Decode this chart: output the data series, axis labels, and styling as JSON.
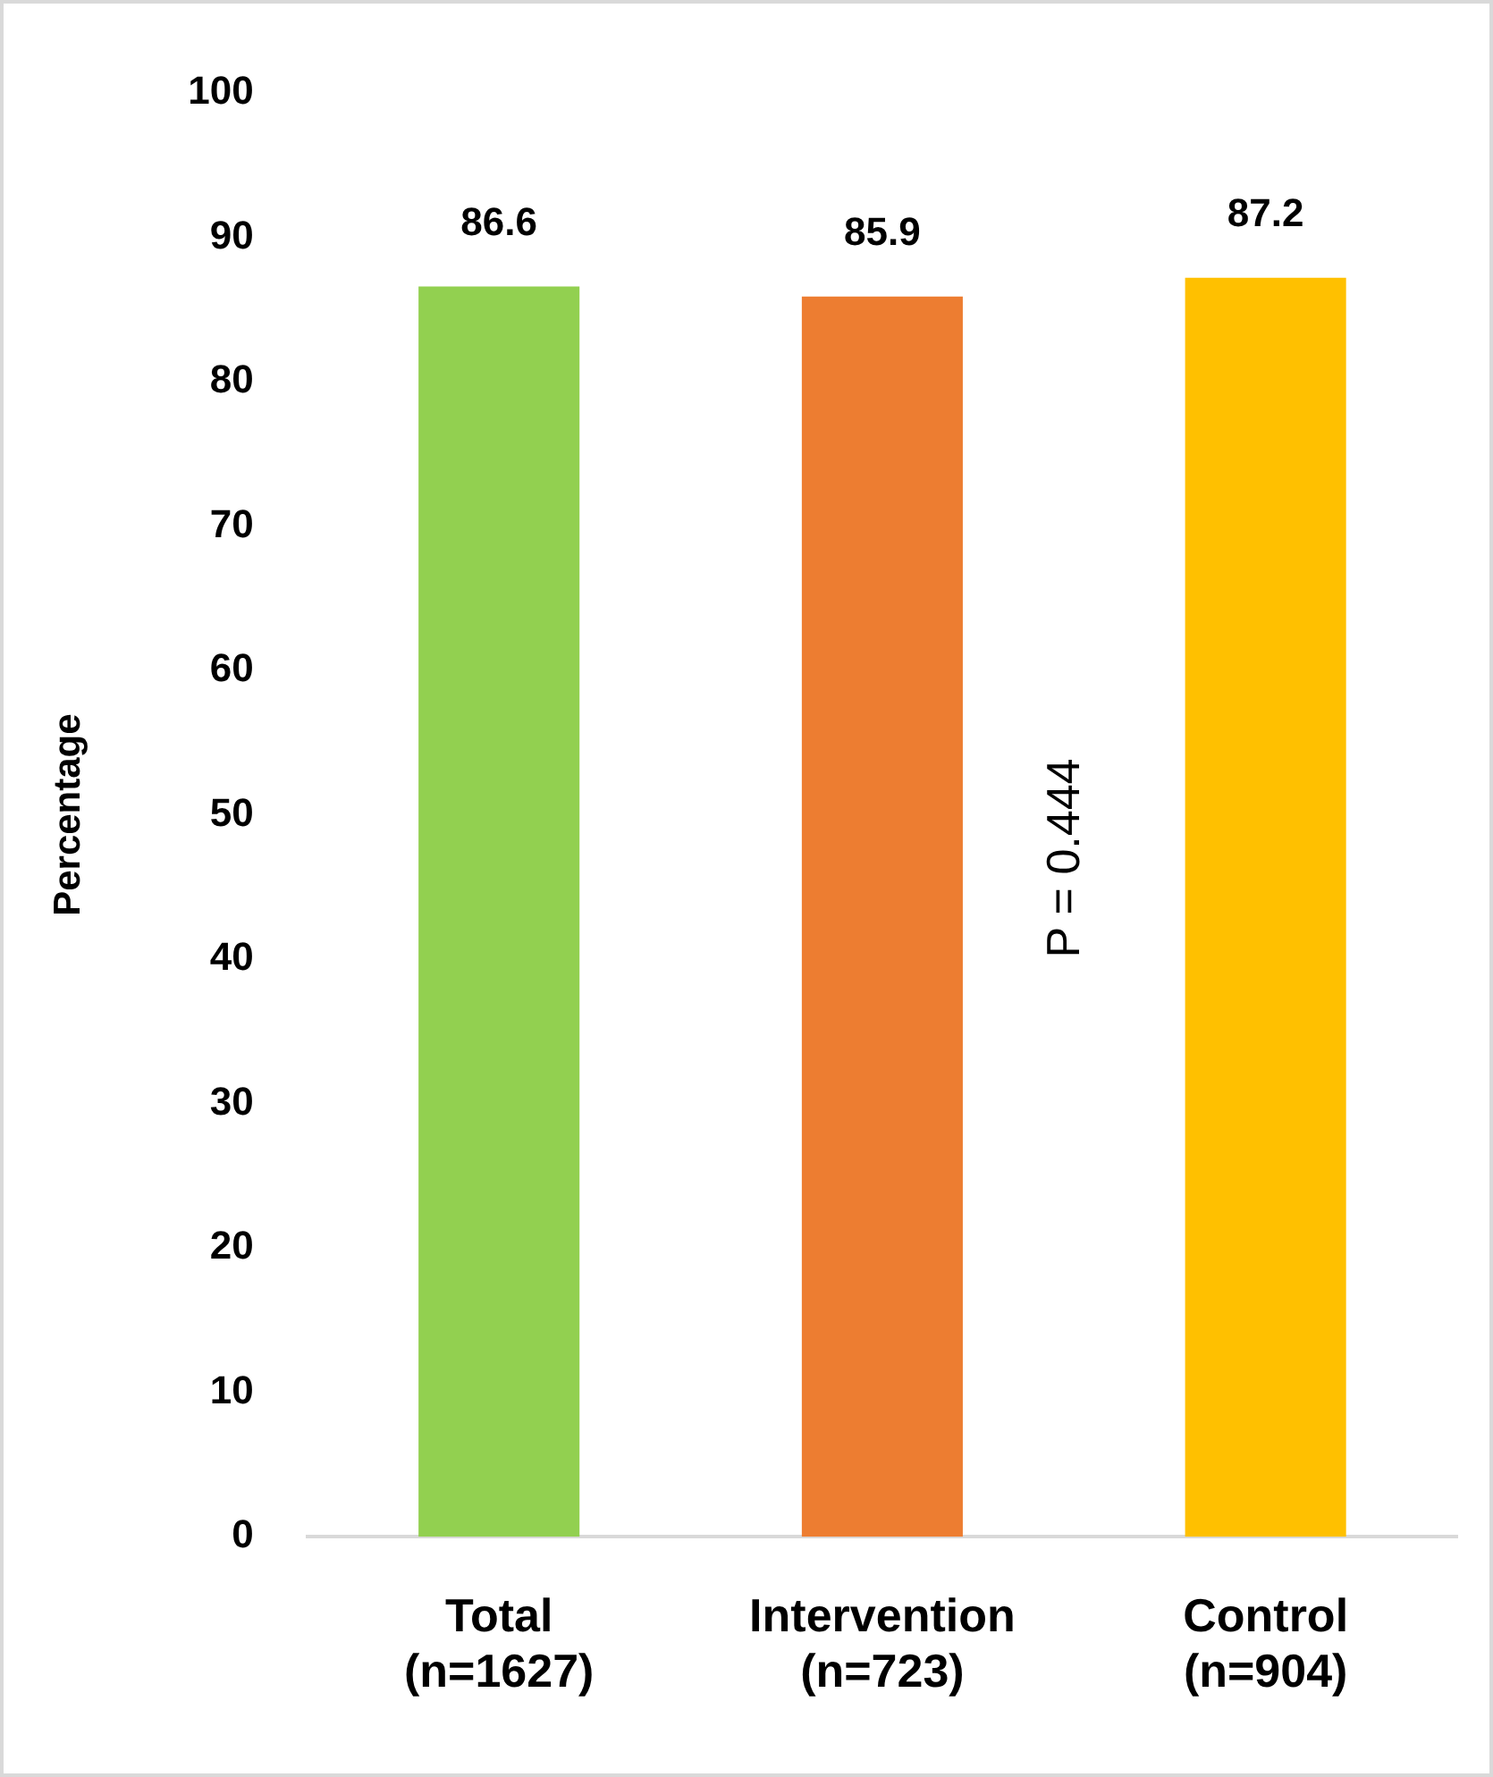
{
  "chart_data": {
    "type": "bar",
    "ylabel": "Percentage",
    "categories": [
      "Total\n(n=1627)",
      "Intervention\n(n=723)",
      "Control\n(n=904)"
    ],
    "values": [
      86.6,
      85.9,
      87.2
    ],
    "colors": [
      "#92d050",
      "#ed7d31",
      "#ffc000"
    ],
    "ylim": [
      0,
      100
    ],
    "yticks": [
      0,
      10,
      20,
      30,
      40,
      50,
      60,
      70,
      80,
      90,
      100
    ],
    "data_labels": true,
    "grid": false,
    "legend": false,
    "annotations": [
      "P = 0.444"
    ]
  }
}
